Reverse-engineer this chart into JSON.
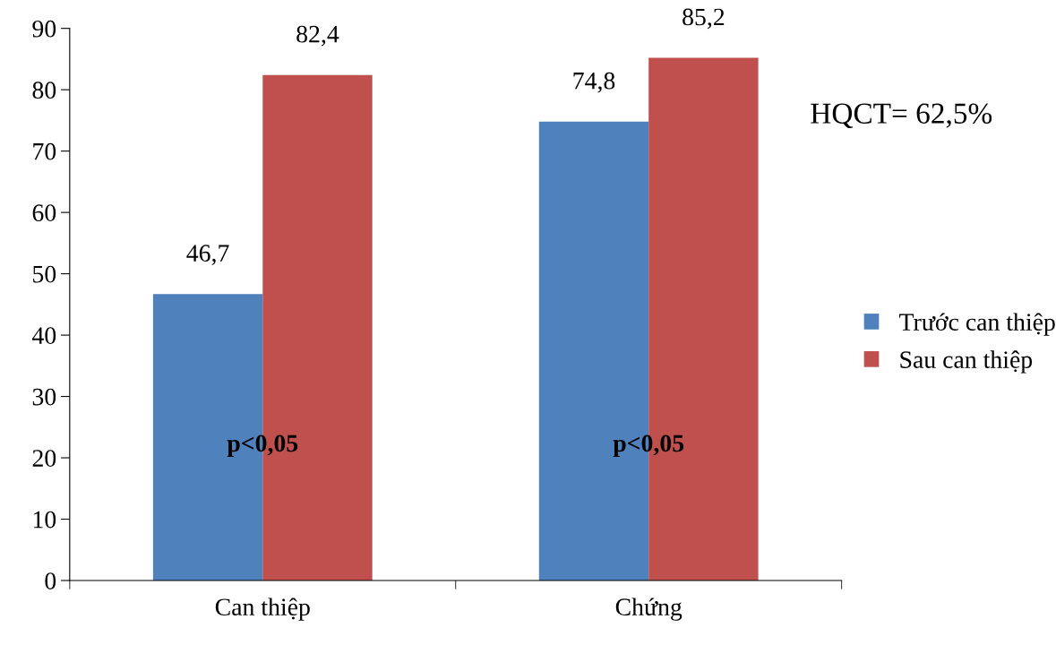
{
  "chart_data": {
    "type": "bar",
    "categories": [
      "Can thiệp",
      "Chứng"
    ],
    "series": [
      {
        "name": "Trước can thiệp",
        "color": "#4f81bd",
        "values": [
          46.7,
          74.8
        ],
        "value_labels": [
          "46,7",
          "74,8"
        ]
      },
      {
        "name": "Sau can thiệp",
        "color": "#c0504d",
        "values": [
          82.4,
          85.2
        ],
        "value_labels": [
          "82,4",
          "85,2"
        ]
      }
    ],
    "ylim": [
      0,
      90
    ],
    "yticks": [
      0,
      10,
      20,
      30,
      40,
      50,
      60,
      70,
      80,
      90
    ],
    "grid": false,
    "legend": "right",
    "annotations": [
      {
        "text": "p<0,05",
        "x": "Can thiệp",
        "y": 22
      },
      {
        "text": "p<0,05",
        "x": "Chứng",
        "y": 22
      },
      "HQCT= 62,5%"
    ]
  }
}
